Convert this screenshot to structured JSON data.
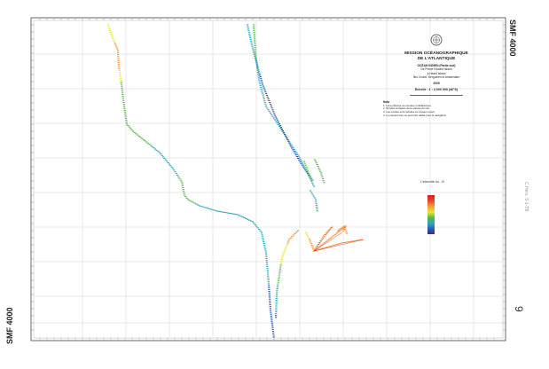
{
  "sheet": {
    "code_top": "SMF 4000",
    "code_bottom": "SMF 4000",
    "page_number": "9",
    "stamp": "C.Hers. 5-1-TB"
  },
  "cartouche": {
    "organisation_line1": "MISSION OCÉANOGRAPHIQUE",
    "organisation_line2": "DE L'ATLANTIQUE",
    "region": "OCÉAN INDIEN (Partie sud)",
    "area_lines": [
      "De Prince Edward Island",
      "à Heard Island",
      "Îles Crozet, Kerguelen et Amsterdam"
    ],
    "year": "2005",
    "scale": "Échelle : 1 : 4 000 000 (46°S)",
    "notes_title": "Nota",
    "notes": [
      "1. Levé effectué au sondeur multifaisceau",
      "2. Sondes corrigées de la vitesse du son",
      "3. Les sondes sont réduites au niveau moyen",
      "4. Le présent levé ne peut être utilisé pour la navigation"
    ]
  },
  "legend": {
    "title": "L'intensité du... B",
    "ticks": [
      "",
      "",
      "",
      "",
      "",
      ""
    ]
  },
  "colors": {
    "grid": "#c8c8c8",
    "frame": "#333333",
    "deep": "#2e55b5",
    "mid": "#56b84a",
    "shallow": "#d7191c"
  },
  "track_icons": [
    "ship-track-sounding-dots"
  ]
}
